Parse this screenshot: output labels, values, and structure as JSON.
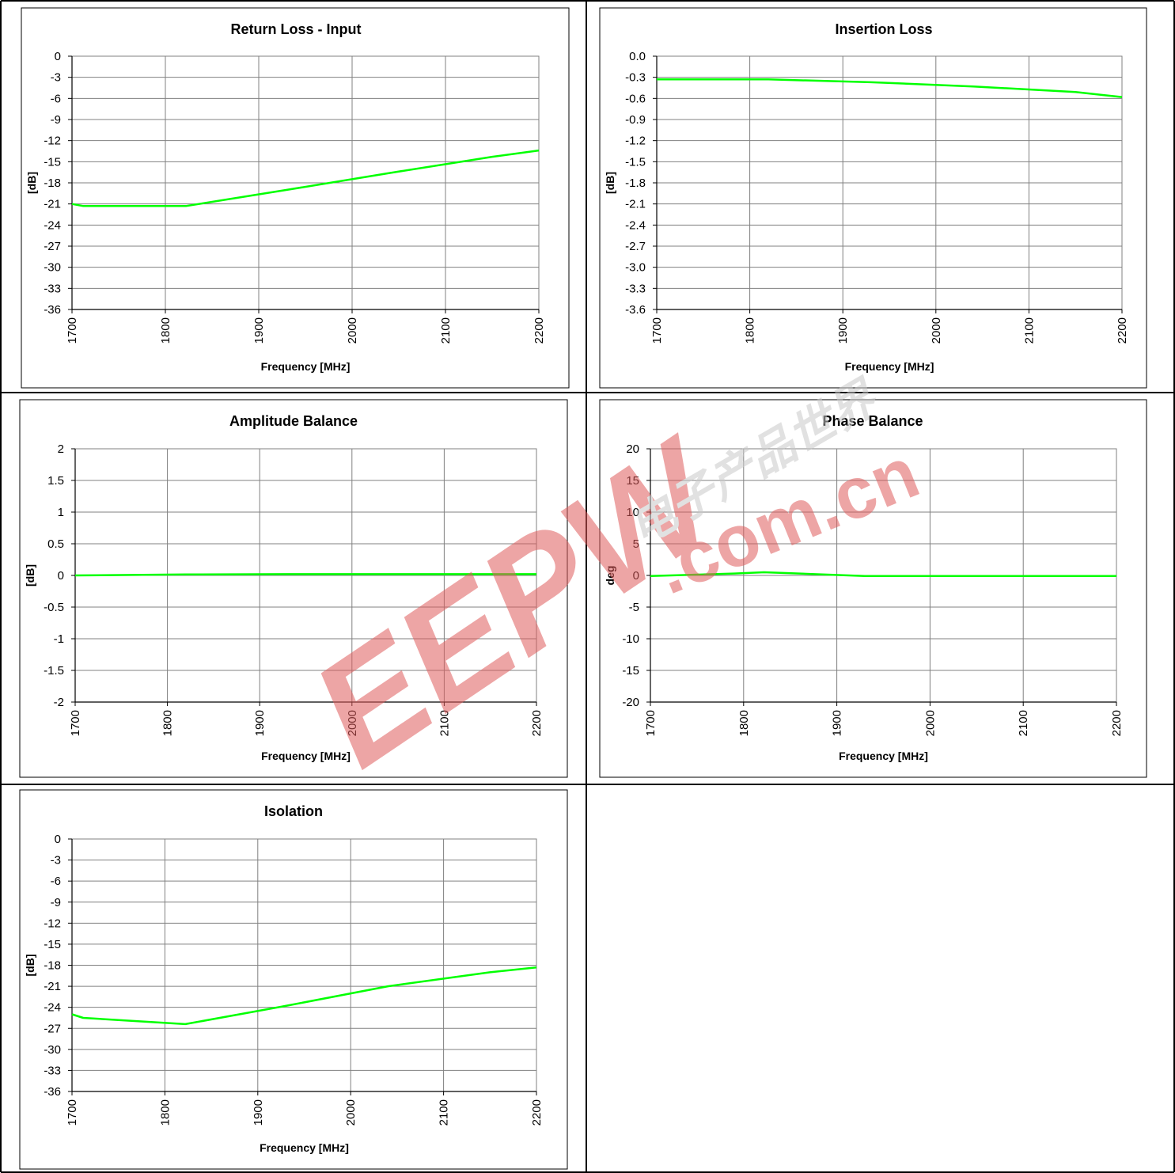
{
  "chart_data": [
    {
      "type": "line",
      "title": "Return Loss - Input",
      "xlabel": "Frequency [MHz]",
      "ylabel": "[dB]",
      "xlim": [
        1700,
        2200
      ],
      "ylim": [
        -36,
        0
      ],
      "x_ticks": [
        "1700",
        "1800",
        "1900",
        "2000",
        "2100",
        "2200"
      ],
      "y_ticks": [
        "0",
        "-3",
        "-6",
        "-9",
        "-12",
        "-15",
        "-18",
        "-21",
        "-24",
        "-27",
        "-30",
        "-33",
        "-36"
      ],
      "grid": true,
      "series": [
        {
          "color": "#00ff00",
          "x": [
            1700,
            1712,
            1822,
            1930,
            2040,
            2150,
            2200
          ],
          "y": [
            -21.0,
            -21.3,
            -21.3,
            -19.0,
            -16.6,
            -14.3,
            -13.4
          ]
        }
      ]
    },
    {
      "type": "line",
      "title": "Insertion Loss",
      "xlabel": "Frequency [MHz]",
      "ylabel": "[dB]",
      "xlim": [
        1700,
        2200
      ],
      "ylim": [
        -3.6,
        0
      ],
      "x_ticks": [
        "1700",
        "1800",
        "1900",
        "2000",
        "2100",
        "2200"
      ],
      "y_ticks": [
        "0.0",
        "-0.3",
        "-0.6",
        "-0.9",
        "-1.2",
        "-1.5",
        "-1.8",
        "-2.1",
        "-2.4",
        "-2.7",
        "-3.0",
        "-3.3",
        "-3.6"
      ],
      "grid": true,
      "series": [
        {
          "color": "#00ff00",
          "x": [
            1700,
            1820,
            1930,
            2040,
            2150,
            2200
          ],
          "y": [
            -0.33,
            -0.33,
            -0.37,
            -0.43,
            -0.51,
            -0.58
          ]
        }
      ]
    },
    {
      "type": "line",
      "title": "Amplitude Balance",
      "xlabel": "Frequency [MHz]",
      "ylabel": "[dB]",
      "xlim": [
        1700,
        2200
      ],
      "ylim": [
        -2,
        2
      ],
      "x_ticks": [
        "1700",
        "1800",
        "1900",
        "2000",
        "2100",
        "2200"
      ],
      "y_ticks": [
        "2",
        "1.5",
        "1",
        "0.5",
        "0",
        "-0.5",
        "-1",
        "-1.5",
        "-2"
      ],
      "grid": true,
      "series": [
        {
          "color": "#00ff00",
          "x": [
            1700,
            1820,
            1930,
            2040,
            2150,
            2200
          ],
          "y": [
            0.0,
            0.015,
            0.02,
            0.02,
            0.02,
            0.02
          ]
        }
      ]
    },
    {
      "type": "line",
      "title": "Phase Balance",
      "xlabel": "Frequency [MHz]",
      "ylabel": "deg",
      "xlim": [
        1700,
        2200
      ],
      "ylim": [
        -20,
        20
      ],
      "x_ticks": [
        "1700",
        "1800",
        "1900",
        "2000",
        "2100",
        "2200"
      ],
      "y_ticks": [
        "20",
        "15",
        "10",
        "5",
        "0",
        "-5",
        "-10",
        "-15",
        "-20"
      ],
      "grid": true,
      "series": [
        {
          "color": "#00ff00",
          "x": [
            1700,
            1790,
            1822,
            1930,
            2040,
            2150,
            2200
          ],
          "y": [
            -0.1,
            0.3,
            0.5,
            -0.1,
            -0.1,
            -0.1,
            -0.1
          ]
        }
      ]
    },
    {
      "type": "line",
      "title": "Isolation",
      "xlabel": "Frequency [MHz]",
      "ylabel": "[dB]",
      "xlim": [
        1700,
        2200
      ],
      "ylim": [
        -36,
        0
      ],
      "x_ticks": [
        "1700",
        "1800",
        "1900",
        "2000",
        "2100",
        "2200"
      ],
      "y_ticks": [
        "0",
        "-3",
        "-6",
        "-9",
        "-12",
        "-15",
        "-18",
        "-21",
        "-24",
        "-27",
        "-30",
        "-33",
        "-36"
      ],
      "grid": true,
      "series": [
        {
          "color": "#00ff00",
          "x": [
            1700,
            1712,
            1822,
            1930,
            2040,
            2150,
            2200
          ],
          "y": [
            -25.0,
            -25.5,
            -26.4,
            -23.8,
            -21.0,
            -19.0,
            -18.3
          ]
        }
      ]
    }
  ],
  "watermark": {
    "brand": "EEPW",
    "domain": ".com.cn",
    "cjk": "电子产品世界",
    "color": "#e05c5c"
  }
}
